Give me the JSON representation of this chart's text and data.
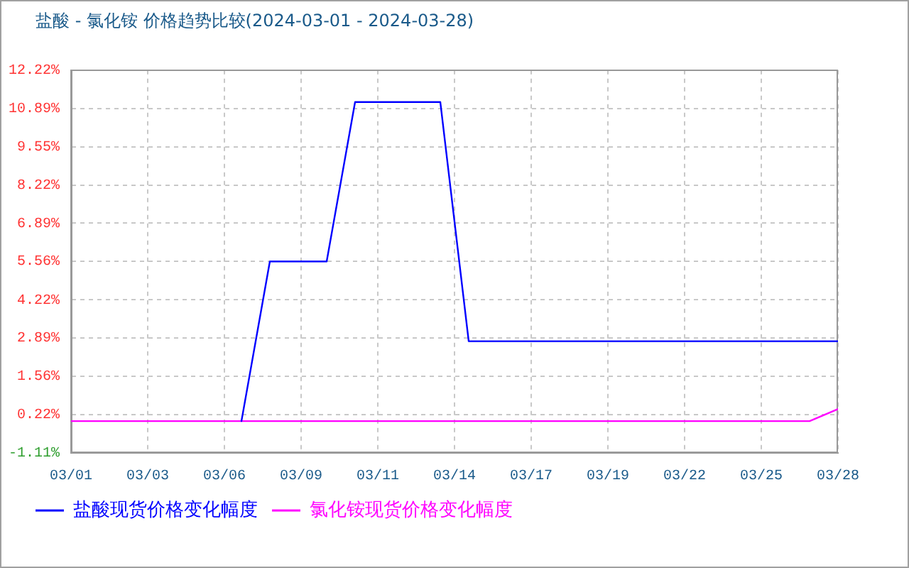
{
  "chart_data": {
    "type": "line",
    "title": "盐酸 - 氯化铵 价格趋势比较(2024-03-01 - 2024-03-28)",
    "x": [
      "2024-03-01",
      "2024-03-02",
      "2024-03-03",
      "2024-03-04",
      "2024-03-05",
      "2024-03-06",
      "2024-03-07",
      "2024-03-08",
      "2024-03-09",
      "2024-03-10",
      "2024-03-11",
      "2024-03-12",
      "2024-03-13",
      "2024-03-14",
      "2024-03-15",
      "2024-03-16",
      "2024-03-17",
      "2024-03-18",
      "2024-03-19",
      "2024-03-20",
      "2024-03-21",
      "2024-03-22",
      "2024-03-23",
      "2024-03-24",
      "2024-03-25",
      "2024-03-26",
      "2024-03-27",
      "2024-03-28"
    ],
    "series": [
      {
        "name": "盐酸现货价格变化幅度",
        "color": "#0000ff",
        "values": [
          null,
          null,
          null,
          null,
          null,
          null,
          0,
          5.56,
          5.56,
          5.56,
          11.11,
          11.11,
          11.11,
          11.11,
          2.78,
          2.78,
          2.78,
          2.78,
          2.78,
          2.78,
          2.78,
          2.78,
          2.78,
          2.78,
          2.78,
          2.78,
          2.78,
          2.78
        ]
      },
      {
        "name": "氯化铵现货价格变化幅度",
        "color": "#ff00ff",
        "values": [
          0,
          0,
          0,
          0,
          0,
          0,
          0,
          0,
          0,
          0,
          0,
          0,
          0,
          0,
          0,
          0,
          0,
          0,
          0,
          0,
          0,
          0,
          0,
          0,
          0,
          0,
          0,
          0.42
        ]
      }
    ],
    "xlim": [
      "2024-03-01",
      "2024-03-28"
    ],
    "xticks": [
      {
        "value": "2024-03-01",
        "label": "03/01"
      },
      {
        "value": "2024-03-03T16:48",
        "label": "03/03"
      },
      {
        "value": "2024-03-06T09:36",
        "label": "03/06"
      },
      {
        "value": "2024-03-09T02:24",
        "label": "03/09"
      },
      {
        "value": "2024-03-11T19:12",
        "label": "03/11"
      },
      {
        "value": "2024-03-14T12:00",
        "label": "03/14"
      },
      {
        "value": "2024-03-17T04:48",
        "label": "03/17"
      },
      {
        "value": "2024-03-19T21:36",
        "label": "03/19"
      },
      {
        "value": "2024-03-22T14:24",
        "label": "03/22"
      },
      {
        "value": "2024-03-25T07:12",
        "label": "03/25"
      },
      {
        "value": "2024-03-28",
        "label": "03/28"
      }
    ],
    "ylim": [
      -1.11,
      12.22
    ],
    "yticks": [
      {
        "value": -1.11,
        "label": "-1.11%"
      },
      {
        "value": 0.22,
        "label": "0.22%"
      },
      {
        "value": 1.56,
        "label": "1.56%"
      },
      {
        "value": 2.89,
        "label": "2.89%"
      },
      {
        "value": 4.22,
        "label": "4.22%"
      },
      {
        "value": 5.56,
        "label": "5.56%"
      },
      {
        "value": 6.89,
        "label": "6.89%"
      },
      {
        "value": 8.22,
        "label": "8.22%"
      },
      {
        "value": 9.55,
        "label": "9.55%"
      },
      {
        "value": 10.89,
        "label": "10.89%"
      },
      {
        "value": 12.22,
        "label": "12.22%"
      }
    ],
    "grid": true,
    "legend": "bottom left",
    "line_style": "solid"
  }
}
